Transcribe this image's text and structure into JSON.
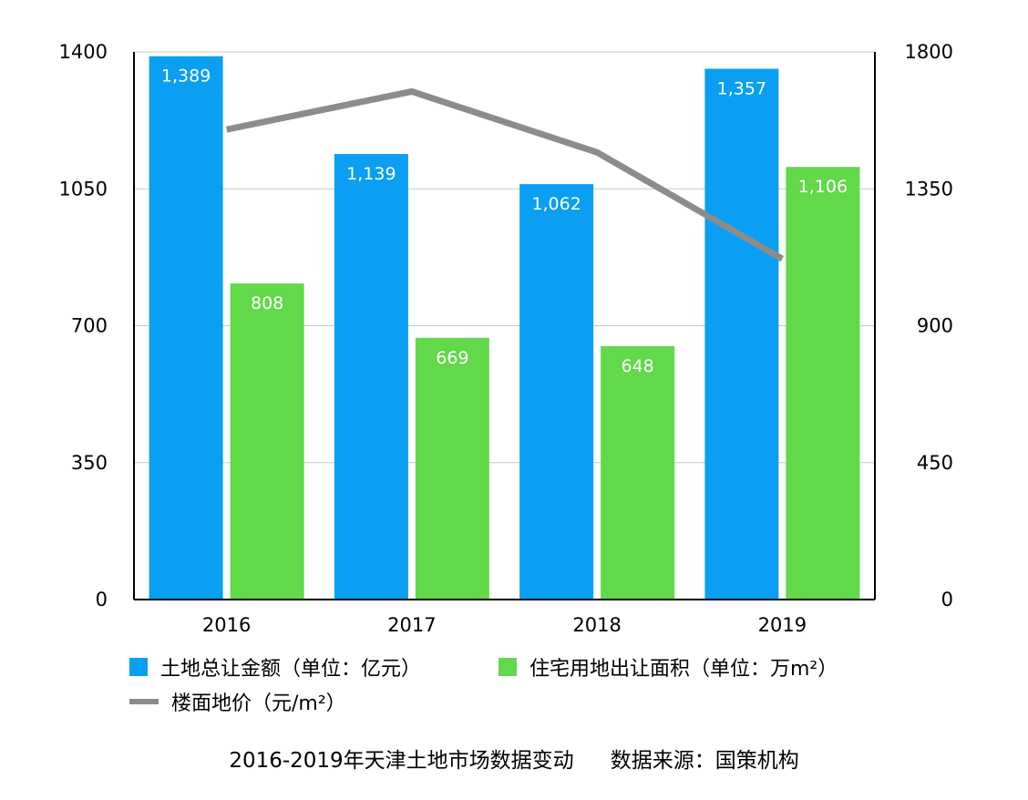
{
  "chart_data": {
    "type": "bar",
    "categories": [
      "2016",
      "2017",
      "2018",
      "2019"
    ],
    "series": [
      {
        "name": "土地总让金额（单位：亿元）",
        "type": "bar",
        "axis": "left",
        "color": "#0a9ff2",
        "values": [
          1389,
          1139,
          1062,
          1357
        ],
        "labels": [
          "1,389",
          "1,139",
          "1,062",
          "1,357"
        ]
      },
      {
        "name": "住宅用地出让面积（单位：万m²）",
        "type": "bar",
        "axis": "left",
        "color": "#62d84b",
        "values": [
          808,
          669,
          648,
          1106
        ],
        "labels": [
          "808",
          "669",
          "648",
          "1,106"
        ]
      },
      {
        "name": "楼面地价（元/m²）",
        "type": "line",
        "axis": "right",
        "color": "#8c8c8c",
        "values": [
          1545,
          1670,
          1470,
          1120
        ]
      }
    ],
    "y_left": {
      "min": 0,
      "max": 1400,
      "ticks": [
        "0",
        "350",
        "700",
        "1050",
        "1400"
      ]
    },
    "y_right": {
      "min": 0,
      "max": 1800,
      "ticks": [
        "0",
        "450",
        "900",
        "1350",
        "1800"
      ]
    },
    "grid": true,
    "legend_position": "bottom"
  },
  "caption": {
    "title": "2016-2019年天津土地市场数据变动",
    "source": "数据来源：国策机构"
  }
}
